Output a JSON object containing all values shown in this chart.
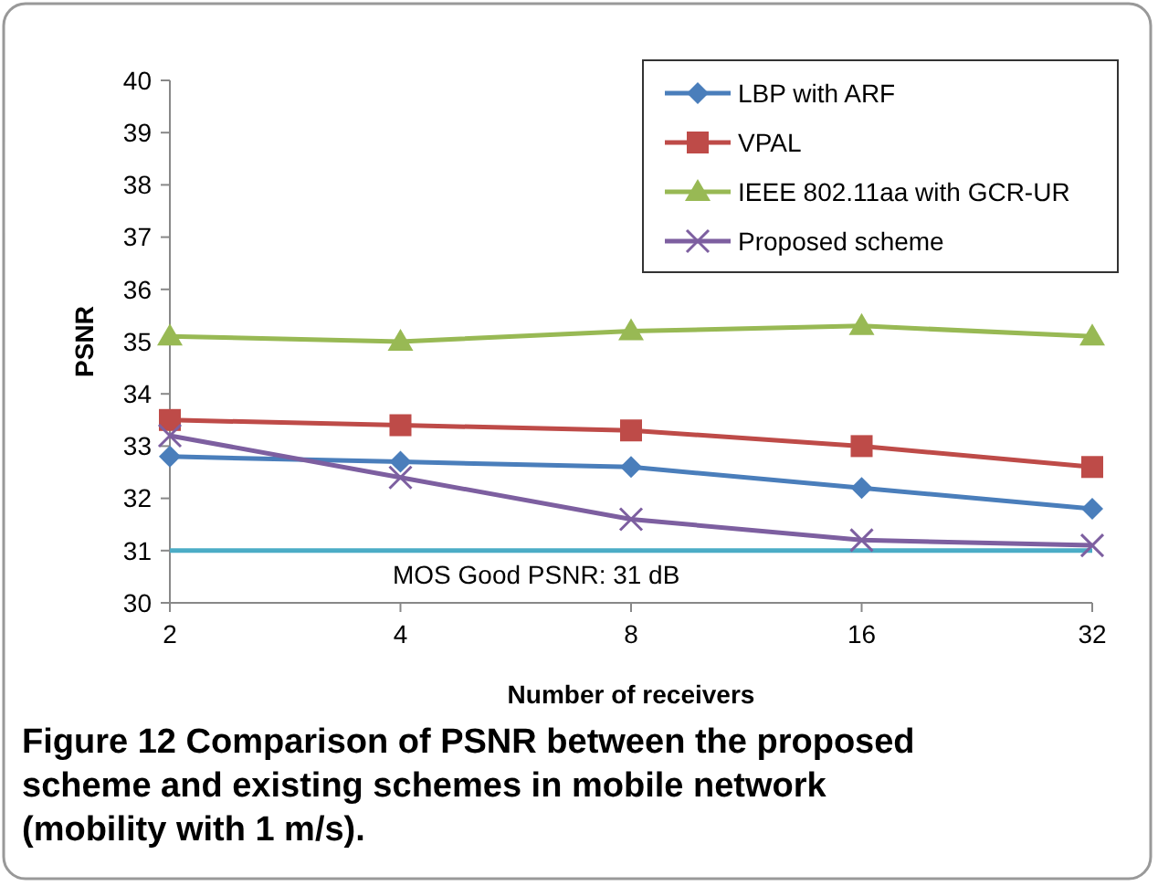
{
  "chart_data": {
    "type": "line",
    "xlabel": "Number of receivers",
    "ylabel": "PSNR",
    "categories": [
      "2",
      "4",
      "8",
      "16",
      "32"
    ],
    "ylim": [
      30,
      40
    ],
    "yticks": [
      30,
      31,
      32,
      33,
      34,
      35,
      36,
      37,
      38,
      39,
      40
    ],
    "grid": false,
    "legend": "top right",
    "series": [
      {
        "name": "LBP with ARF",
        "color": "#4a7ebb",
        "marker": "diamond",
        "values": [
          32.8,
          32.7,
          32.6,
          32.2,
          31.8
        ]
      },
      {
        "name": "VPAL",
        "color": "#be4b48",
        "marker": "square",
        "values": [
          33.5,
          33.4,
          33.3,
          33.0,
          32.6
        ]
      },
      {
        "name": "IEEE 802.11aa with GCR-UR",
        "color": "#98b954",
        "marker": "triangle",
        "values": [
          35.1,
          35.0,
          35.2,
          35.3,
          35.1
        ]
      },
      {
        "name": "Proposed scheme",
        "color": "#7d5fa0",
        "marker": "cross",
        "values": [
          33.2,
          32.4,
          31.6,
          31.2,
          31.1
        ]
      }
    ],
    "ref_lines": [
      {
        "axis": "y",
        "value": 31,
        "label": "MOS Good PSNR: 31 dB",
        "color": "#4bacc6"
      }
    ],
    "annotations": [
      "Figure 12 Comparison of PSNR between the proposed scheme and existing schemes in mobile network (mobility with 1 m/s)."
    ]
  }
}
